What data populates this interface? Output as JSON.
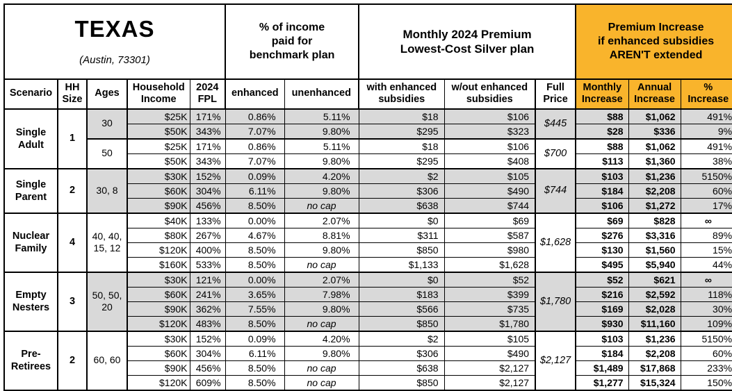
{
  "colors": {
    "accent_orange": "#F9B42C",
    "shade_gray": "#D9D9D9",
    "border_black": "#000000",
    "background": "#FFFFFF"
  },
  "header": {
    "state": "TEXAS",
    "location": "(Austin, 73301)",
    "sections": {
      "pct_income": "% of income\npaid for\nbenchmark plan",
      "premium": "Monthly 2024 Premium\nLowest-Cost Silver plan",
      "increase": "Premium Increase\nif enhanced subsidies\nAREN'T extended"
    },
    "columns": {
      "scenario": "Scenario",
      "hh_size": "HH\nSize",
      "ages": "Ages",
      "income": "Household\nIncome",
      "fpl": "2024\nFPL",
      "enhanced": "enhanced",
      "unenhanced": "unenhanced",
      "with_subsidies": "with enhanced\nsubsidies",
      "without_subsidies": "w/out enhanced\nsubsidies",
      "full_price": "Full\nPrice",
      "monthly_increase": "Monthly\nIncrease",
      "annual_increase": "Annual\nIncrease",
      "pct_increase": "%\nIncrease"
    }
  },
  "table": {
    "row_cell_order": [
      "income",
      "fpl",
      "enhanced",
      "unenhanced",
      "with_subsidies",
      "without_subsidies",
      "monthly_increase",
      "annual_increase",
      "pct_increase"
    ],
    "groups": [
      {
        "scenario": "Single\nAdult",
        "hh_size": "1",
        "blocks": [
          {
            "ages": "30",
            "shaded": true,
            "full_price": "$445",
            "rows": [
              [
                "$25K",
                "171%",
                "0.86%",
                "5.11%",
                "$18",
                "$106",
                "$88",
                "$1,062",
                "491%"
              ],
              [
                "$50K",
                "343%",
                "7.07%",
                "9.80%",
                "$295",
                "$323",
                "$28",
                "$336",
                "9%"
              ]
            ]
          },
          {
            "ages": "50",
            "shaded": false,
            "full_price": "$700",
            "rows": [
              [
                "$25K",
                "171%",
                "0.86%",
                "5.11%",
                "$18",
                "$106",
                "$88",
                "$1,062",
                "491%"
              ],
              [
                "$50K",
                "343%",
                "7.07%",
                "9.80%",
                "$295",
                "$408",
                "$113",
                "$1,360",
                "38%"
              ]
            ]
          }
        ]
      },
      {
        "scenario": "Single\nParent",
        "hh_size": "2",
        "blocks": [
          {
            "ages": "30, 8",
            "shaded": true,
            "full_price": "$744",
            "rows": [
              [
                "$30K",
                "152%",
                "0.09%",
                "4.20%",
                "$2",
                "$105",
                "$103",
                "$1,236",
                "5150%"
              ],
              [
                "$60K",
                "304%",
                "6.11%",
                "9.80%",
                "$306",
                "$490",
                "$184",
                "$2,208",
                "60%"
              ],
              [
                "$90K",
                "456%",
                "8.50%",
                "no cap",
                "$638",
                "$744",
                "$106",
                "$1,272",
                "17%"
              ]
            ]
          }
        ]
      },
      {
        "scenario": "Nuclear\nFamily",
        "hh_size": "4",
        "blocks": [
          {
            "ages": "40, 40,\n15, 12",
            "shaded": false,
            "full_price": "$1,628",
            "rows": [
              [
                "$40K",
                "133%",
                "0.00%",
                "2.07%",
                "$0",
                "$69",
                "$69",
                "$828",
                "∞"
              ],
              [
                "$80K",
                "267%",
                "4.67%",
                "8.81%",
                "$311",
                "$587",
                "$276",
                "$3,316",
                "89%"
              ],
              [
                "$120K",
                "400%",
                "8.50%",
                "9.80%",
                "$850",
                "$980",
                "$130",
                "$1,560",
                "15%"
              ],
              [
                "$160K",
                "533%",
                "8.50%",
                "no cap",
                "$1,133",
                "$1,628",
                "$495",
                "$5,940",
                "44%"
              ]
            ]
          }
        ]
      },
      {
        "scenario": "Empty\nNesters",
        "hh_size": "3",
        "blocks": [
          {
            "ages": "50, 50,\n20",
            "shaded": true,
            "full_price": "$1,780",
            "rows": [
              [
                "$30K",
                "121%",
                "0.00%",
                "2.07%",
                "$0",
                "$52",
                "$52",
                "$621",
                "∞"
              ],
              [
                "$60K",
                "241%",
                "3.65%",
                "7.98%",
                "$183",
                "$399",
                "$216",
                "$2,592",
                "118%"
              ],
              [
                "$90K",
                "362%",
                "7.55%",
                "9.80%",
                "$566",
                "$735",
                "$169",
                "$2,028",
                "30%"
              ],
              [
                "$120K",
                "483%",
                "8.50%",
                "no cap",
                "$850",
                "$1,780",
                "$930",
                "$11,160",
                "109%"
              ]
            ]
          }
        ]
      },
      {
        "scenario": "Pre-\nRetirees",
        "hh_size": "2",
        "blocks": [
          {
            "ages": "60, 60",
            "shaded": false,
            "full_price": "$2,127",
            "rows": [
              [
                "$30K",
                "152%",
                "0.09%",
                "4.20%",
                "$2",
                "$105",
                "$103",
                "$1,236",
                "5150%"
              ],
              [
                "$60K",
                "304%",
                "6.11%",
                "9.80%",
                "$306",
                "$490",
                "$184",
                "$2,208",
                "60%"
              ],
              [
                "$90K",
                "456%",
                "8.50%",
                "no cap",
                "$638",
                "$2,127",
                "$1,489",
                "$17,868",
                "233%"
              ],
              [
                "$120K",
                "609%",
                "8.50%",
                "no cap",
                "$850",
                "$2,127",
                "$1,277",
                "$15,324",
                "150%"
              ]
            ]
          }
        ]
      }
    ]
  }
}
